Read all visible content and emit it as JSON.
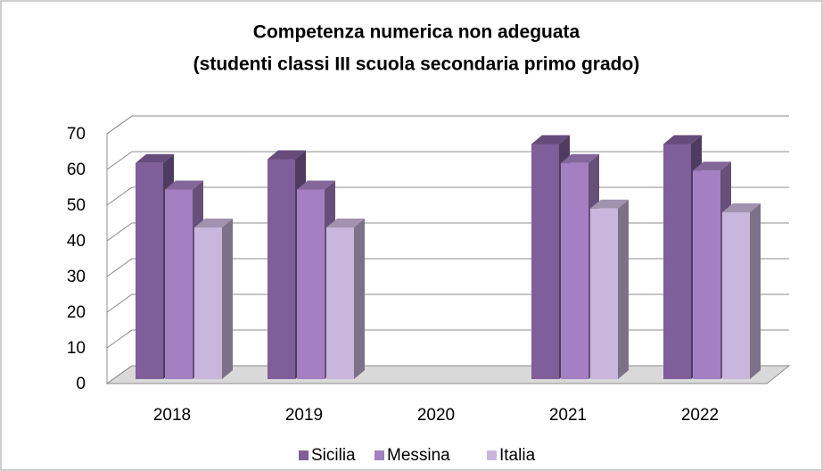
{
  "chart_data": {
    "type": "bar3d",
    "title": "Competenza numerica non adeguata",
    "subtitle": "(studenti classi III scuola secondaria primo grado)",
    "categories": [
      "2018",
      "2019",
      "2020",
      "2021",
      "2022"
    ],
    "series": [
      {
        "name": "Sicilia",
        "color": "#7f5f9a",
        "values": [
          57,
          58,
          null,
          62,
          62
        ]
      },
      {
        "name": "Messina",
        "color": "#a47fc1",
        "values": [
          50,
          50,
          null,
          57,
          55
        ]
      },
      {
        "name": "Italia",
        "color": "#c9b6dc",
        "values": [
          40,
          40,
          null,
          45,
          44
        ]
      }
    ],
    "ylim": [
      0,
      70
    ],
    "yticks": [
      0,
      10,
      20,
      30,
      40,
      50,
      60,
      70
    ],
    "grid": true,
    "legend": "bottom"
  }
}
